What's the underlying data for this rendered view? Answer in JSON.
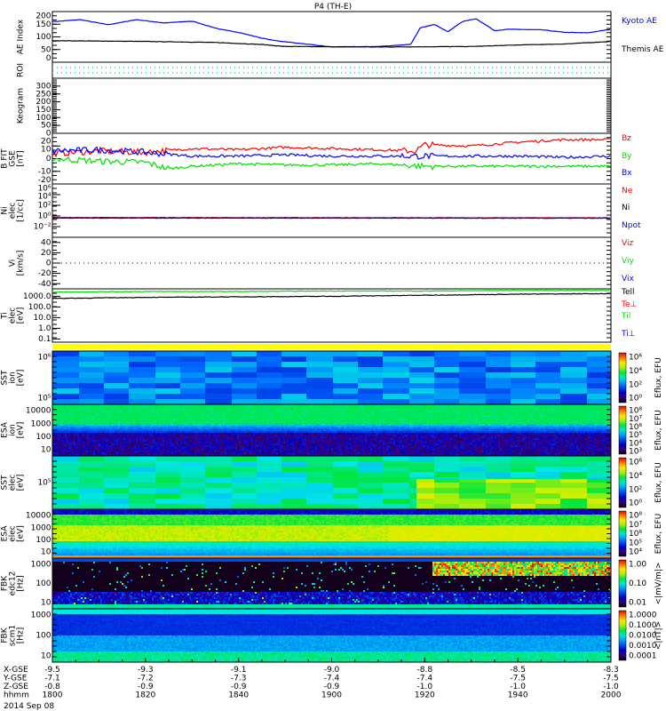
{
  "title": "P4 (TH-E)",
  "date_label": "2014 Sep 08",
  "colors": {
    "kyoto": "#0000ff",
    "themis": "#000000",
    "bz": "#ff0000",
    "by": "#00dd00",
    "bx": "#0000ff",
    "ne": "#ff0000",
    "ni": "#000000",
    "npot": "#0000ff",
    "cyan": "#00e0e0",
    "yellow": "#ffff00"
  },
  "chart_data": {
    "type": "line",
    "x_axis": {
      "rows": [
        "X-GSE",
        "Y-GSE",
        "Z-GSE",
        "hhmm"
      ],
      "ticks": [
        {
          "time": 1800,
          "x_gse": "-9.5",
          "y_gse": "-7.1",
          "z_gse": "-0.8",
          "hhmm": "1800"
        },
        {
          "time": 1820,
          "x_gse": "-9.3",
          "y_gse": "-7.2",
          "z_gse": "-0.9",
          "hhmm": "1820"
        },
        {
          "time": 1840,
          "x_gse": "-9.1",
          "y_gse": "-7.3",
          "z_gse": "-0.9",
          "hhmm": "1840"
        },
        {
          "time": 1900,
          "x_gse": "-9.0",
          "y_gse": "-7.4",
          "z_gse": "-0.9",
          "hhmm": "1900"
        },
        {
          "time": 1920,
          "x_gse": "-8.8",
          "y_gse": "-7.4",
          "z_gse": "-1.0",
          "hhmm": "1920"
        },
        {
          "time": 1940,
          "x_gse": "-8.5",
          "y_gse": "-7.5",
          "z_gse": "-1.0",
          "hhmm": "1940"
        },
        {
          "time": 2000,
          "x_gse": "-8.3",
          "y_gse": "-7.5",
          "z_gse": "-1.0",
          "hhmm": "2000"
        }
      ],
      "range_minutes": [
        0,
        120
      ]
    },
    "panels": [
      {
        "id": "ae",
        "ylabel": [
          "AE Index"
        ],
        "scale": "linear",
        "ylim": [
          0,
          200
        ],
        "ticks": [
          "0",
          "50",
          "100",
          "150",
          "200"
        ],
        "tickvals": [
          0,
          50,
          100,
          150,
          200
        ],
        "series": [
          {
            "name": "Kyoto AE",
            "color": "#0000ff",
            "t": [
              0,
              6,
              12,
              18,
              24,
              30,
              36,
              40,
              45,
              48,
              60,
              70,
              75,
              77,
              79,
              82,
              85,
              88,
              91,
              95,
              98,
              105,
              110,
              115,
              120
            ],
            "v": [
              160,
              168,
              148,
              168,
              155,
              162,
              130,
              118,
              95,
              85,
              60,
              62,
              68,
              70,
              135,
              150,
              120,
              160,
              172,
              125,
              130,
              128,
              118,
              116,
              130
            ]
          },
          {
            "name": "Themis AE",
            "color": "#000000",
            "t": [
              0,
              20,
              35,
              45,
              50,
              70,
              90,
              100,
              110,
              120
            ],
            "v": [
              85,
              82,
              78,
              70,
              62,
              60,
              62,
              68,
              72,
              82
            ]
          }
        ]
      },
      {
        "id": "roi",
        "ylabel": [
          "ROI"
        ],
        "scale": "none",
        "ticks": [],
        "tickvals": [],
        "series": []
      },
      {
        "id": "keogram",
        "ylabel": [
          "Keogram"
        ],
        "scale": "linear",
        "ylim": [
          0,
          350
        ],
        "ticks": [
          "0",
          "50",
          "100",
          "150",
          "200",
          "250",
          "300"
        ],
        "tickvals": [
          0,
          50,
          100,
          150,
          200,
          250,
          300
        ],
        "series": []
      },
      {
        "id": "bfield",
        "ylabel": [
          "B FIT",
          "GSE",
          "[nT]"
        ],
        "scale": "linear",
        "ylim": [
          -20,
          20
        ],
        "ticks": [
          "-20",
          "-10",
          "0",
          "10",
          "20"
        ],
        "tickvals": [
          -20,
          -10,
          0,
          10,
          20
        ],
        "series": [
          {
            "name": "Bz",
            "color": "#ff0000",
            "t": [
              0,
              10,
              20,
              30,
              40,
              50,
              60,
              70,
              78,
              80,
              90,
              100,
              110,
              120
            ],
            "v": [
              4,
              6,
              5,
              8,
              7,
              9,
              8,
              7,
              6,
              11,
              10,
              13,
              15,
              15
            ]
          },
          {
            "name": "By",
            "color": "#00dd00",
            "t": [
              0,
              10,
              20,
              25,
              30,
              40,
              50,
              60,
              70,
              80,
              90,
              100,
              110,
              120
            ],
            "v": [
              0,
              -2,
              -3,
              -8,
              -6,
              -4,
              -5,
              -5,
              -4,
              -6,
              -6,
              -6,
              -6,
              -6
            ]
          },
          {
            "name": "Bx",
            "color": "#0000ff",
            "t": [
              0,
              10,
              20,
              30,
              40,
              50,
              60,
              70,
              80,
              90,
              100,
              110,
              120
            ],
            "v": [
              6,
              7,
              5,
              2,
              2,
              3,
              2,
              2,
              2,
              2,
              2,
              1,
              2
            ]
          }
        ]
      },
      {
        "id": "density",
        "ylabel": [
          "Ni",
          "elec",
          "[1/cc]"
        ],
        "scale": "log",
        "ylim": [
          -4,
          6
        ],
        "ticks": [
          "10⁻²",
          "10⁰",
          "10²",
          "10⁴",
          "10⁶"
        ],
        "tickvals": [
          -2,
          0,
          2,
          4,
          6
        ],
        "series": [
          {
            "name": "Ne",
            "color": "#ff0000",
            "t": [
              0,
              120
            ],
            "v": [
              -0.3,
              -0.35
            ]
          },
          {
            "name": "Ni",
            "color": "#000000",
            "t": [
              0,
              120
            ],
            "v": [
              -0.35,
              -0.4
            ]
          },
          {
            "name": "Npot",
            "color": "#0000ff",
            "t": [
              0,
              120
            ],
            "v": [
              -0.4,
              -0.4
            ]
          }
        ]
      },
      {
        "id": "velocity",
        "ylabel": [
          "Vi",
          "[km/s]"
        ],
        "scale": "linear",
        "ylim": [
          -50,
          50
        ],
        "ticks": [
          "-40",
          "-20",
          "0",
          "20",
          "40"
        ],
        "tickvals": [
          -40,
          -20,
          0,
          20,
          40
        ],
        "series": [
          {
            "name": "Vix",
            "color": "#0000ff"
          },
          {
            "name": "Viy",
            "color": "#00dd00"
          },
          {
            "name": "Viz",
            "color": "#ff0000"
          }
        ]
      },
      {
        "id": "temperature",
        "ylabel": [
          "Ti",
          "elec",
          "[eV]"
        ],
        "scale": "log",
        "ylim": [
          -1.3,
          3.7
        ],
        "ticks": [
          "0.1",
          "1.0",
          "10.0",
          "100.0",
          "1000.0"
        ],
        "tickvals": [
          -1,
          0,
          1,
          2,
          3
        ],
        "series": [
          {
            "name": "Tell",
            "color": "#00dd00",
            "t": [
              0,
              20,
              40,
              60,
              80,
              100,
              120
            ],
            "v": [
              3.4,
              3.45,
              3.45,
              3.5,
              3.5,
              3.55,
              3.55
            ]
          },
          {
            "name": "Tiperp_black",
            "color": "#000000",
            "t": [
              0,
              20,
              40,
              60,
              80,
              100,
              120
            ],
            "v": [
              2.8,
              2.9,
              2.95,
              3.0,
              3.1,
              3.2,
              3.25
            ]
          }
        ]
      }
    ],
    "spectrograms": [
      {
        "id": "sst-ion",
        "ylabel": [
          "SST",
          "ion",
          "[eV]"
        ],
        "ticks": [
          "10⁵",
          "10⁶"
        ],
        "cbar_ticks": [
          "10⁰",
          "10²",
          "10⁴",
          "10⁶"
        ],
        "cbar_label": "Eflux, EFU"
      },
      {
        "id": "esa-ion",
        "ylabel": [
          "ESA",
          "ion",
          "[eV]"
        ],
        "ticks": [
          "10",
          "100",
          "1000",
          "10000"
        ],
        "cbar_ticks": [
          "10³",
          "10⁴",
          "10⁵",
          "10⁶",
          "10⁷",
          "10⁸"
        ],
        "cbar_label": "Eflux, EFU"
      },
      {
        "id": "sst-elec",
        "ylabel": [
          "SST",
          "elec",
          "[eV]"
        ],
        "ticks": [
          "10⁵"
        ],
        "cbar_ticks": [
          "10⁰",
          "10²",
          "10⁴",
          "10⁶"
        ],
        "cbar_label": "Eflux, EFU"
      },
      {
        "id": "esa-elec",
        "ylabel": [
          "ESA",
          "elec",
          "[eV]"
        ],
        "ticks": [
          "10",
          "100",
          "1000",
          "10000"
        ],
        "cbar_ticks": [
          "10⁴",
          "10⁵",
          "10⁶",
          "10⁷",
          "10⁸"
        ],
        "cbar_label": "Eflux, EFU"
      },
      {
        "id": "fbk-edc12",
        "ylabel": [
          "FBK",
          "edc12",
          "[Hz]"
        ],
        "ticks": [
          "10",
          "100",
          "1000"
        ],
        "cbar_ticks": [
          "0.01",
          "0.10",
          "1.00"
        ],
        "cbar_label": "<|mV/m|>"
      },
      {
        "id": "fbk-scm1",
        "ylabel": [
          "FBK",
          "scm1",
          "[Hz]"
        ],
        "ticks": [
          "10",
          "100",
          "1000"
        ],
        "cbar_ticks": [
          "0.0001",
          "0.0010",
          "0.0100",
          "0.1000",
          "1.0000"
        ],
        "cbar_label": "<|nT|>"
      }
    ],
    "legends": {
      "ae": [
        "Kyoto AE",
        "Themis AE"
      ],
      "bfield": [
        "Bz",
        "By",
        "Bx"
      ],
      "density": [
        "Ne",
        "Ni",
        "Npot"
      ],
      "velocity": [
        "Viz",
        "Viy",
        "Vix"
      ],
      "temperature": [
        "Tell",
        "Te⊥",
        "Til",
        "Ti⊥"
      ]
    }
  }
}
